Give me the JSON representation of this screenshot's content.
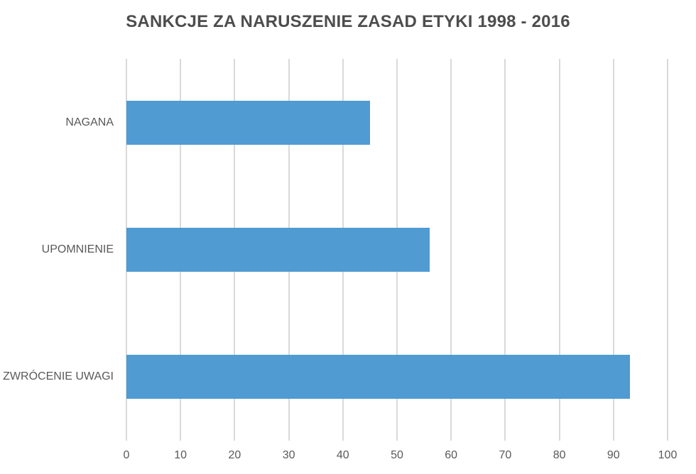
{
  "chart_data": {
    "type": "bar",
    "orientation": "horizontal",
    "title": "SANKCJE ZA NARUSZENIE ZASAD ETYKI 1998 - 2016",
    "categories": [
      "NAGANA",
      "UPOMNIENIE",
      "ZWRÓCENIE UWAGI"
    ],
    "values": [
      45,
      56,
      93
    ],
    "xlabel": "",
    "ylabel": "",
    "xlim": [
      0,
      100
    ],
    "x_ticks": [
      0,
      10,
      20,
      30,
      40,
      50,
      60,
      70,
      80,
      90,
      100
    ],
    "grid": "vertical-gridlines-only",
    "legend": "none",
    "colors": {
      "bar": "#4F9BD2",
      "gridline": "#D9D9D9",
      "title_text": "#4D4D4D",
      "axis_text": "#595959",
      "background": "#FFFFFF"
    }
  }
}
